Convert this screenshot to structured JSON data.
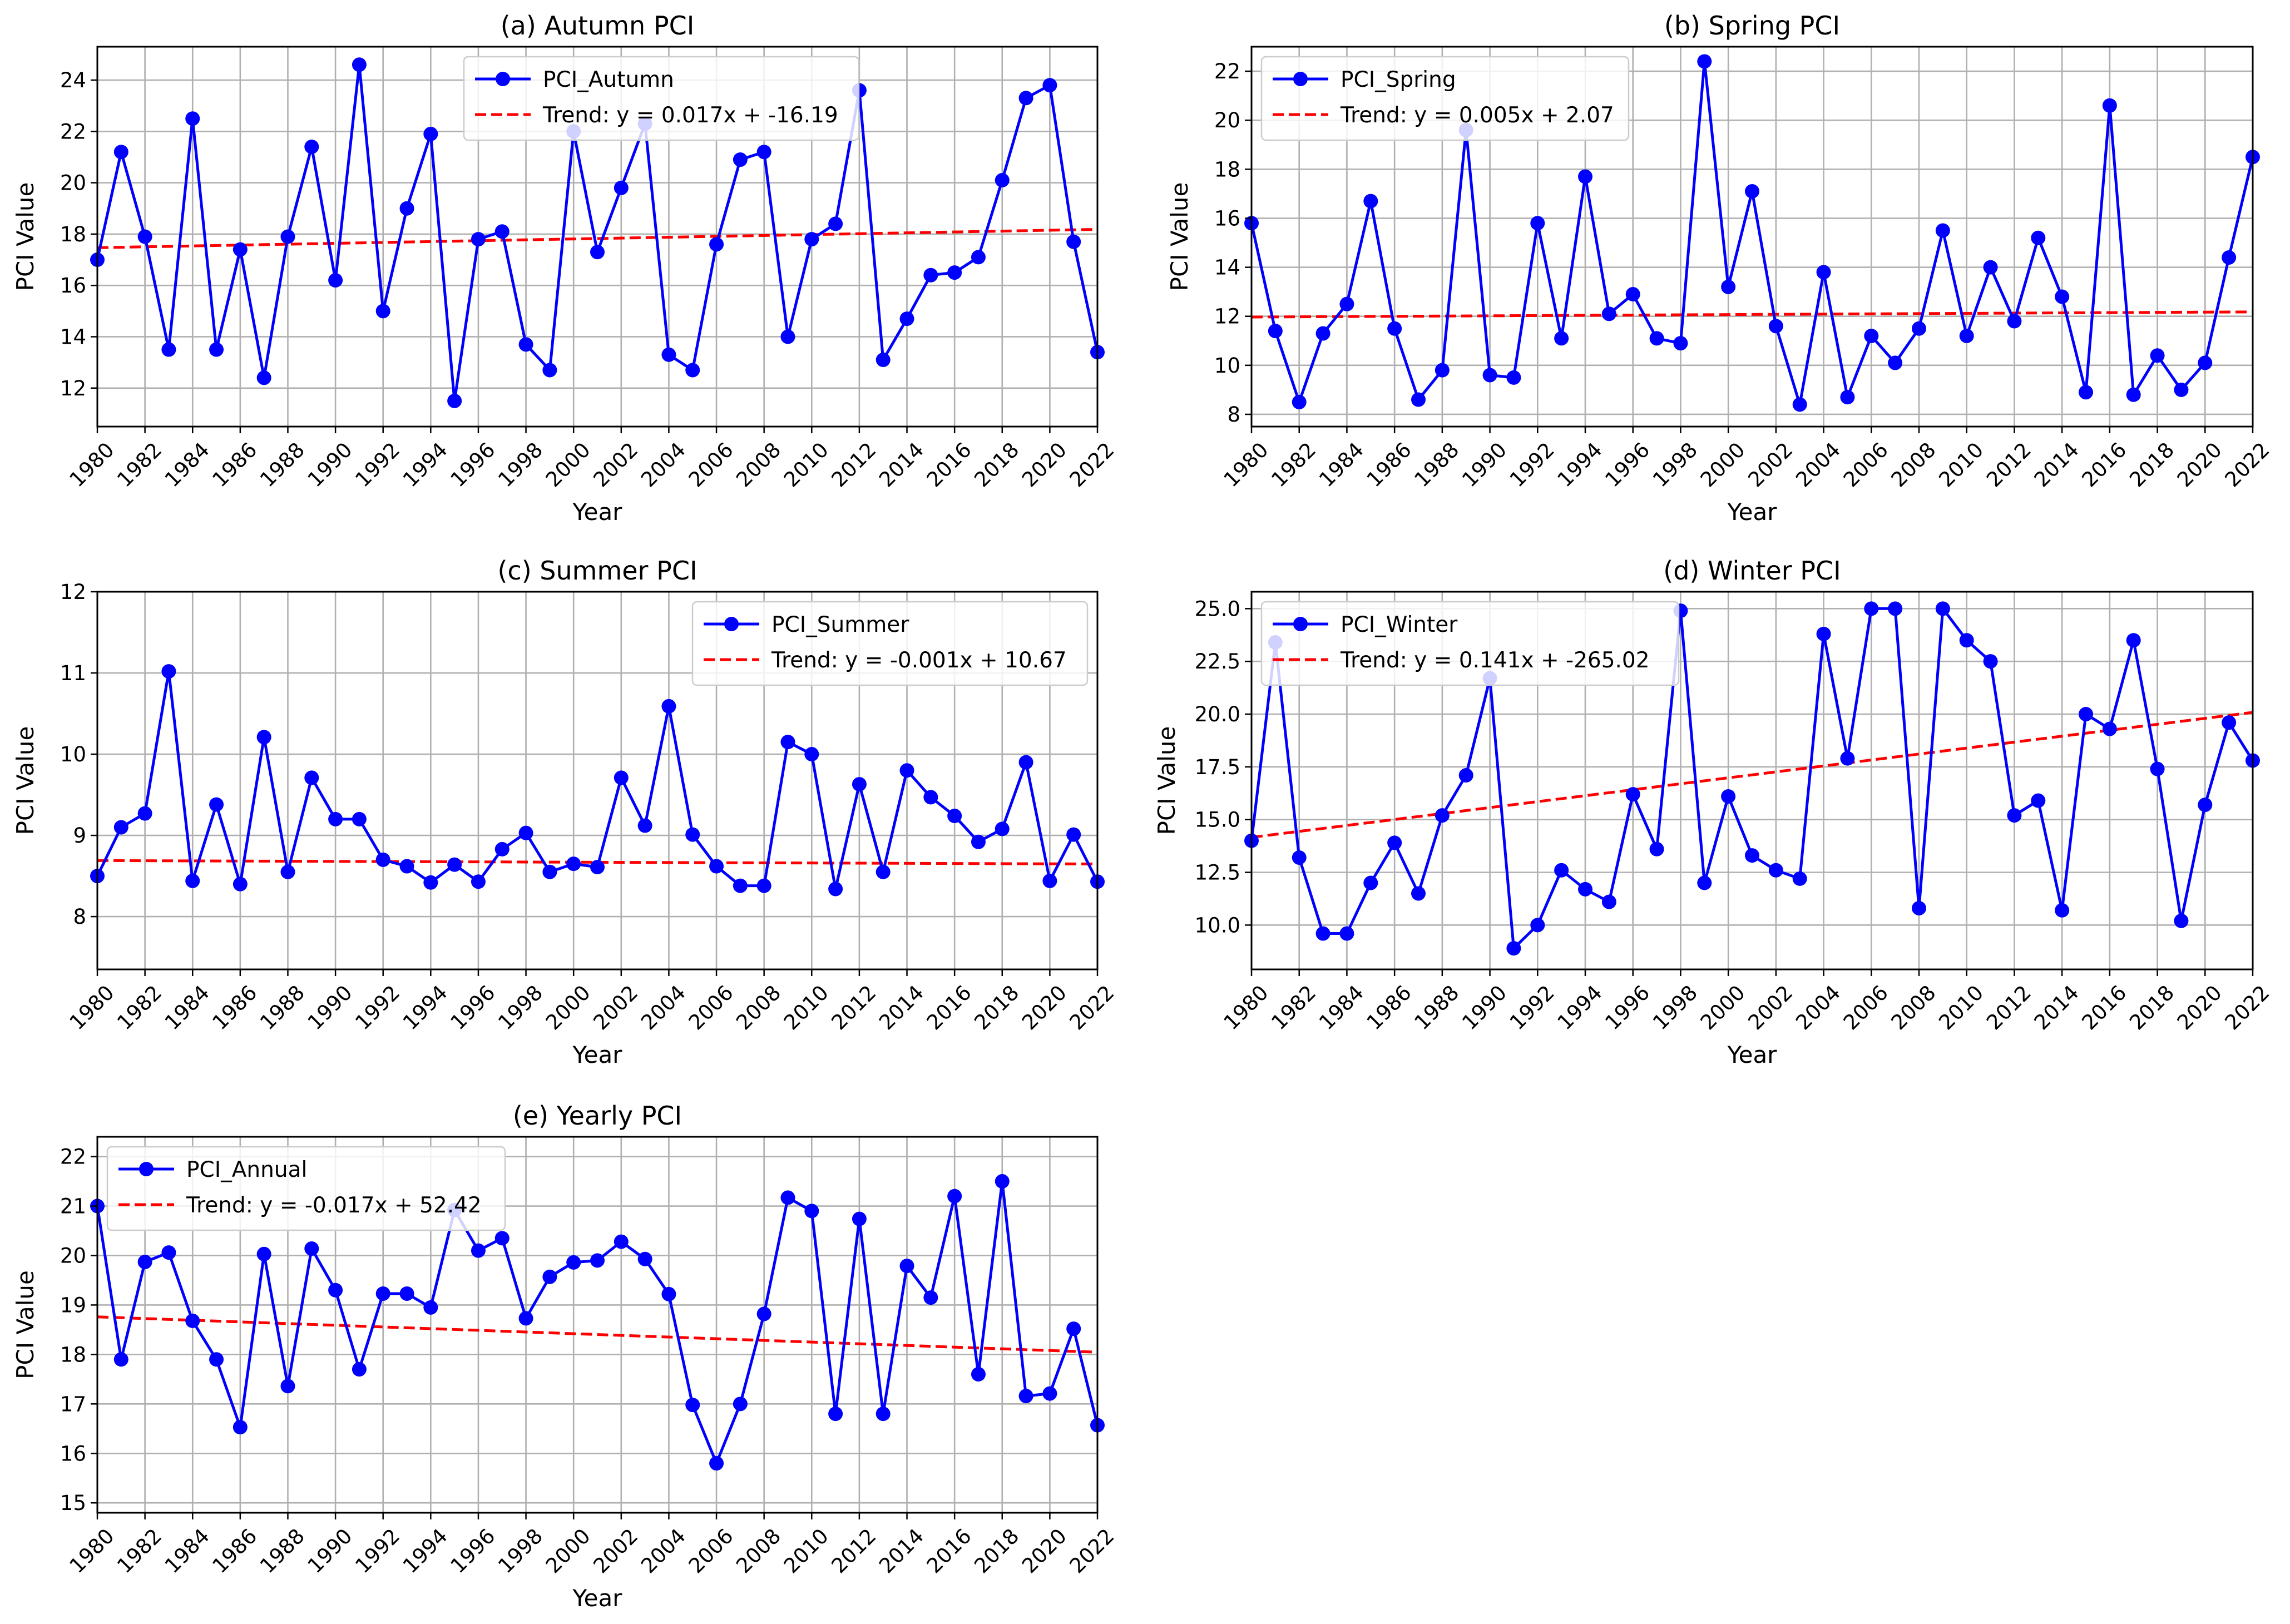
{
  "colors": {
    "series": "#0000ff",
    "trend": "#ff0000",
    "grid": "#b0b0b0",
    "legend_border": "#cccccc"
  },
  "chart_data": [
    {
      "id": "autumn",
      "type": "line",
      "title": "(a) Autumn PCI",
      "xlabel": "Year",
      "ylabel": "PCI Value",
      "xlim": [
        1980,
        2022
      ],
      "ylim": [
        10.5,
        25.3
      ],
      "x_ticks": [
        1980,
        1982,
        1984,
        1986,
        1988,
        1990,
        1992,
        1994,
        1996,
        1998,
        2000,
        2002,
        2004,
        2006,
        2008,
        2010,
        2012,
        2014,
        2016,
        2018,
        2020,
        2022
      ],
      "y_ticks": [
        12,
        14,
        16,
        18,
        20,
        22,
        24
      ],
      "y_tick_labels": [
        "12",
        "14",
        "16",
        "18",
        "20",
        "22",
        "24"
      ],
      "legend": {
        "position": "upper-center",
        "series_label": "PCI_Autumn",
        "trend_label": "Trend: y = 0.017x + -16.19"
      },
      "trend": {
        "slope": 0.017,
        "intercept": -16.19
      },
      "x": [
        1980,
        1981,
        1982,
        1983,
        1984,
        1985,
        1986,
        1987,
        1988,
        1989,
        1990,
        1991,
        1992,
        1993,
        1994,
        1995,
        1996,
        1997,
        1998,
        1999,
        2000,
        2001,
        2002,
        2003,
        2004,
        2005,
        2006,
        2007,
        2008,
        2009,
        2010,
        2011,
        2012,
        2013,
        2014,
        2015,
        2016,
        2017,
        2018,
        2019,
        2020,
        2021,
        2022
      ],
      "values": [
        17.0,
        21.2,
        17.9,
        13.5,
        22.5,
        13.5,
        17.4,
        12.4,
        17.9,
        21.4,
        16.2,
        24.6,
        15.0,
        19.0,
        21.9,
        11.5,
        17.8,
        18.1,
        13.7,
        12.7,
        22.0,
        17.3,
        19.8,
        22.3,
        13.3,
        12.7,
        17.6,
        20.9,
        21.2,
        14.0,
        17.8,
        18.4,
        23.6,
        13.1,
        14.7,
        16.4,
        16.5,
        17.1,
        20.1,
        23.3,
        23.8,
        17.7,
        13.4
      ]
    },
    {
      "id": "spring",
      "type": "line",
      "title": "(b) Spring PCI",
      "xlabel": "Year",
      "ylabel": "PCI Value",
      "xlim": [
        1980,
        2022
      ],
      "ylim": [
        7.5,
        23.0
      ],
      "x_ticks": [
        1980,
        1982,
        1984,
        1986,
        1988,
        1990,
        1992,
        1994,
        1996,
        1998,
        2000,
        2002,
        2004,
        2006,
        2008,
        2010,
        2012,
        2014,
        2016,
        2018,
        2020,
        2022
      ],
      "y_ticks": [
        8,
        10,
        12,
        14,
        16,
        18,
        20,
        22
      ],
      "y_tick_labels": [
        "8",
        "10",
        "12",
        "14",
        "16",
        "18",
        "20",
        "22"
      ],
      "legend": {
        "position": "upper-left",
        "series_label": "PCI_Spring",
        "trend_label": "Trend: y = 0.005x + 2.07"
      },
      "trend": {
        "slope": 0.005,
        "intercept": 2.07
      },
      "x": [
        1980,
        1981,
        1982,
        1983,
        1984,
        1985,
        1986,
        1987,
        1988,
        1989,
        1990,
        1991,
        1992,
        1993,
        1994,
        1995,
        1996,
        1997,
        1998,
        1999,
        2000,
        2001,
        2002,
        2003,
        2004,
        2005,
        2006,
        2007,
        2008,
        2009,
        2010,
        2011,
        2012,
        2013,
        2014,
        2015,
        2016,
        2017,
        2018,
        2019,
        2020,
        2021,
        2022
      ],
      "values": [
        15.8,
        11.4,
        8.5,
        11.3,
        12.5,
        16.7,
        11.5,
        8.6,
        9.8,
        19.6,
        9.6,
        9.5,
        15.8,
        11.1,
        17.7,
        12.1,
        12.9,
        11.1,
        10.9,
        22.4,
        13.2,
        17.1,
        11.6,
        8.4,
        13.8,
        8.7,
        11.2,
        10.1,
        11.5,
        15.5,
        11.2,
        14.0,
        11.8,
        15.2,
        12.8,
        8.9,
        20.6,
        8.8,
        10.4,
        9.0,
        10.1,
        14.4,
        18.5
      ]
    },
    {
      "id": "summer",
      "type": "line",
      "title": "(c) Summer PCI",
      "xlabel": "Year",
      "ylabel": "PCI Value",
      "xlim": [
        1980,
        2022
      ],
      "ylim": [
        7.35,
        12.0
      ],
      "x_ticks": [
        1980,
        1982,
        1984,
        1986,
        1988,
        1990,
        1992,
        1994,
        1996,
        1998,
        2000,
        2002,
        2004,
        2006,
        2008,
        2010,
        2012,
        2014,
        2016,
        2018,
        2020,
        2022
      ],
      "y_ticks": [
        8,
        9,
        10,
        11,
        12
      ],
      "y_tick_labels": [
        "8",
        "9",
        "10",
        "11",
        "12"
      ],
      "legend": {
        "position": "upper-right",
        "series_label": "PCI_Summer",
        "trend_label": "Trend: y = -0.001x + 10.67"
      },
      "trend": {
        "slope": -0.001,
        "intercept": 10.67
      },
      "x": [
        1980,
        1981,
        1982,
        1983,
        1984,
        1985,
        1986,
        1987,
        1988,
        1989,
        1990,
        1991,
        1992,
        1993,
        1994,
        1995,
        1996,
        1997,
        1998,
        1999,
        2000,
        2001,
        2002,
        2003,
        2004,
        2005,
        2006,
        2007,
        2008,
        2009,
        2010,
        2011,
        2012,
        2013,
        2014,
        2015,
        2016,
        2017,
        2018,
        2019,
        2020,
        2021,
        2022
      ],
      "values": [
        8.5,
        9.1,
        9.27,
        11.02,
        8.44,
        9.38,
        8.4,
        10.21,
        8.55,
        9.71,
        9.2,
        9.2,
        8.7,
        8.62,
        8.42,
        8.64,
        8.43,
        8.83,
        9.03,
        8.55,
        8.65,
        8.61,
        9.71,
        9.12,
        10.59,
        9.01,
        8.62,
        8.38,
        8.38,
        10.15,
        10.0,
        8.34,
        9.63,
        8.55,
        9.8,
        9.47,
        9.24,
        8.92,
        9.08,
        9.9,
        8.44,
        9.01,
        8.43
      ]
    },
    {
      "id": "winter",
      "type": "line",
      "title": "(d) Winter PCI",
      "xlabel": "Year",
      "ylabel": "PCI Value",
      "xlim": [
        1980,
        2022
      ],
      "ylim": [
        7.9,
        25.8
      ],
      "x_ticks": [
        1980,
        1982,
        1984,
        1986,
        1988,
        1990,
        1992,
        1994,
        1996,
        1998,
        2000,
        2002,
        2004,
        2006,
        2008,
        2010,
        2012,
        2014,
        2016,
        2018,
        2020,
        2022
      ],
      "y_ticks": [
        10,
        12.5,
        15,
        17.5,
        20,
        22.5,
        25
      ],
      "y_tick_labels": [
        "10.0",
        "12.5",
        "15.0",
        "17.5",
        "20.0",
        "22.5",
        "25.0"
      ],
      "legend": {
        "position": "upper-left",
        "series_label": "PCI_Winter",
        "trend_label": "Trend: y = 0.141x + -265.02"
      },
      "trend": {
        "slope": 0.141,
        "intercept": -265.02
      },
      "x": [
        1980,
        1981,
        1982,
        1983,
        1984,
        1985,
        1986,
        1987,
        1988,
        1989,
        1990,
        1991,
        1992,
        1993,
        1994,
        1995,
        1996,
        1997,
        1998,
        1999,
        2000,
        2001,
        2002,
        2003,
        2004,
        2005,
        2006,
        2007,
        2008,
        2009,
        2010,
        2011,
        2012,
        2013,
        2014,
        2015,
        2016,
        2017,
        2018,
        2019,
        2020,
        2021,
        2022
      ],
      "values": [
        14.0,
        23.4,
        13.2,
        9.6,
        9.6,
        12.0,
        13.9,
        11.5,
        15.2,
        17.1,
        21.7,
        8.9,
        10.0,
        12.6,
        11.7,
        11.1,
        16.2,
        13.6,
        24.9,
        12.0,
        16.1,
        13.3,
        12.6,
        12.2,
        23.8,
        17.9,
        25.0,
        25.0,
        10.8,
        25.0,
        23.5,
        22.5,
        15.2,
        15.9,
        10.7,
        20.0,
        19.3,
        23.5,
        17.4,
        10.2,
        15.7,
        19.6,
        17.8
      ]
    },
    {
      "id": "annual",
      "type": "line",
      "title": "(e) Yearly PCI",
      "xlabel": "Year",
      "ylabel": "PCI Value",
      "xlim": [
        1980,
        2022
      ],
      "ylim": [
        14.8,
        22.4
      ],
      "x_ticks": [
        1980,
        1982,
        1984,
        1986,
        1988,
        1990,
        1992,
        1994,
        1996,
        1998,
        2000,
        2002,
        2004,
        2006,
        2008,
        2010,
        2012,
        2014,
        2016,
        2018,
        2020,
        2022
      ],
      "y_ticks": [
        15,
        16,
        17,
        18,
        19,
        20,
        21,
        22
      ],
      "y_tick_labels": [
        "15",
        "16",
        "17",
        "18",
        "19",
        "20",
        "21",
        "22"
      ],
      "legend": {
        "position": "upper-left",
        "series_label": "PCI_Annual",
        "trend_label": "Trend: y = -0.017x + 52.42"
      },
      "trend": {
        "slope": -0.017,
        "intercept": 52.42
      },
      "x": [
        1980,
        1981,
        1982,
        1983,
        1984,
        1985,
        1986,
        1987,
        1988,
        1989,
        1990,
        1991,
        1992,
        1993,
        1994,
        1995,
        1996,
        1997,
        1998,
        1999,
        2000,
        2001,
        2002,
        2003,
        2004,
        2005,
        2006,
        2007,
        2008,
        2009,
        2010,
        2011,
        2012,
        2013,
        2014,
        2015,
        2016,
        2017,
        2018,
        2019,
        2020,
        2021,
        2022
      ],
      "values": [
        21.0,
        17.9,
        19.87,
        20.06,
        18.68,
        17.9,
        16.53,
        20.03,
        17.36,
        20.14,
        19.3,
        17.7,
        19.23,
        19.23,
        18.95,
        20.92,
        20.1,
        20.35,
        18.73,
        19.57,
        19.86,
        19.9,
        20.28,
        19.93,
        19.22,
        16.98,
        15.8,
        17.0,
        18.82,
        21.17,
        20.9,
        16.8,
        20.74,
        16.8,
        19.79,
        19.15,
        21.2,
        17.6,
        21.5,
        17.16,
        17.21,
        18.52,
        16.57
      ]
    }
  ]
}
